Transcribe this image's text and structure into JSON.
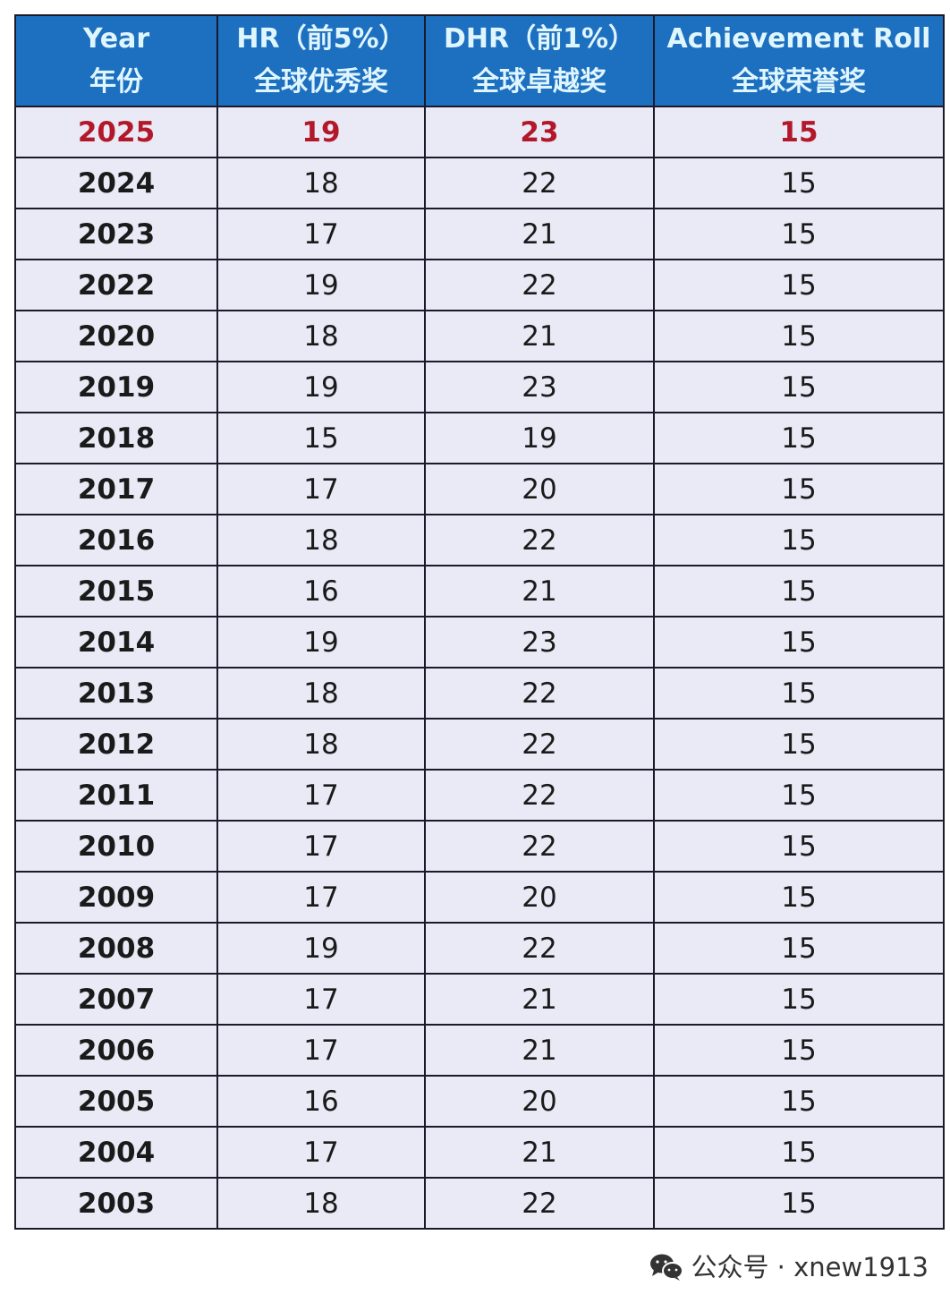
{
  "chart_data": {
    "type": "table",
    "columns": [
      {
        "line1": "Year",
        "line2": "年份"
      },
      {
        "line1": "HR（前5%）",
        "line2": "全球优秀奖"
      },
      {
        "line1": "DHR（前1%）",
        "line2": "全球卓越奖"
      },
      {
        "line1": "Achievement Roll",
        "line2": "全球荣誉奖"
      }
    ],
    "highlight_color": "#b3182a",
    "header_color": "#1d6fc0",
    "rows": [
      [
        "2025",
        "19",
        "23",
        "15"
      ],
      [
        "2024",
        "18",
        "22",
        "15"
      ],
      [
        "2023",
        "17",
        "21",
        "15"
      ],
      [
        "2022",
        "19",
        "22",
        "15"
      ],
      [
        "2020",
        "18",
        "21",
        "15"
      ],
      [
        "2019",
        "19",
        "23",
        "15"
      ],
      [
        "2018",
        "15",
        "19",
        "15"
      ],
      [
        "2017",
        "17",
        "20",
        "15"
      ],
      [
        "2016",
        "18",
        "22",
        "15"
      ],
      [
        "2015",
        "16",
        "21",
        "15"
      ],
      [
        "2014",
        "19",
        "23",
        "15"
      ],
      [
        "2013",
        "18",
        "22",
        "15"
      ],
      [
        "2012",
        "18",
        "22",
        "15"
      ],
      [
        "2011",
        "17",
        "22",
        "15"
      ],
      [
        "2010",
        "17",
        "22",
        "15"
      ],
      [
        "2009",
        "17",
        "20",
        "15"
      ],
      [
        "2008",
        "19",
        "22",
        "15"
      ],
      [
        "2007",
        "17",
        "21",
        "15"
      ],
      [
        "2006",
        "17",
        "21",
        "15"
      ],
      [
        "2005",
        "16",
        "20",
        "15"
      ],
      [
        "2004",
        "17",
        "21",
        "15"
      ],
      [
        "2003",
        "18",
        "22",
        "15"
      ]
    ]
  },
  "watermark": {
    "icon": "wechat-icon",
    "text": "公众号 · xnew1913"
  }
}
